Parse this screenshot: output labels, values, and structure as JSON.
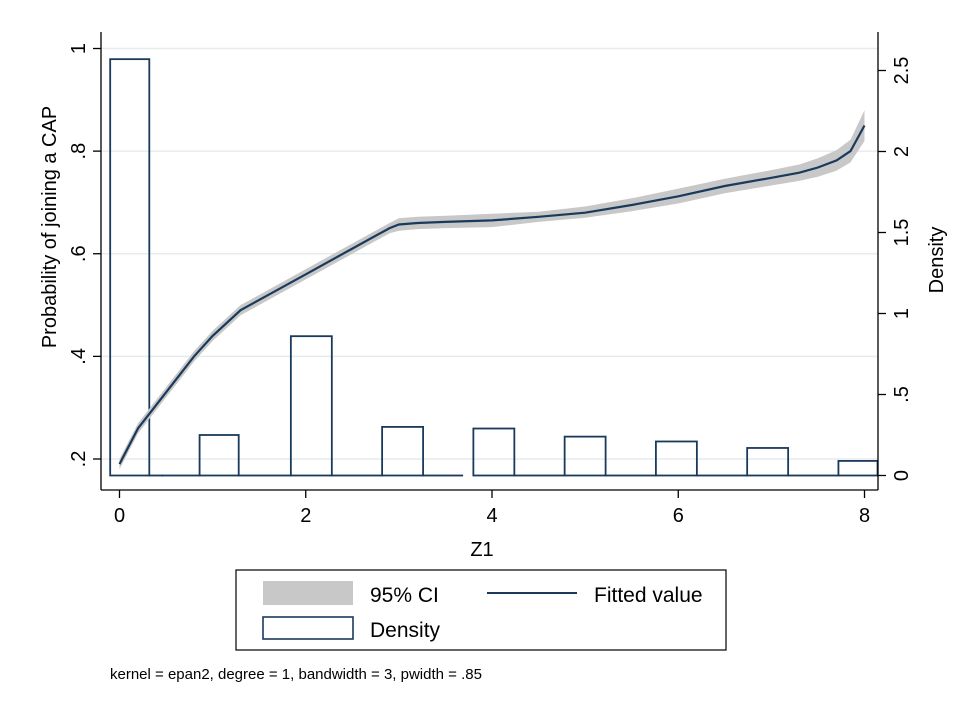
{
  "chart_data": {
    "type": "line",
    "x_axis": {
      "label": "Z1",
      "range": [
        0,
        8
      ],
      "ticks": [
        0,
        2,
        4,
        6,
        8
      ]
    },
    "y_axis_left": {
      "label": "Probability of joining a CAP",
      "range": [
        0.18,
        1.0
      ],
      "ticks": [
        0.2,
        0.4,
        0.6,
        0.8,
        1.0
      ],
      "tick_labels": [
        ".2",
        ".4",
        ".6",
        ".8",
        "1"
      ]
    },
    "y_axis_right": {
      "label": "Density",
      "range": [
        -0.1,
        2.6
      ],
      "ticks": [
        0,
        0.5,
        1,
        1.5,
        2,
        2.5
      ],
      "tick_labels": [
        "0",
        ".5",
        "1",
        "1.5",
        "2",
        "2.5"
      ]
    },
    "grid": true,
    "fitted": {
      "name": "Fitted value",
      "color": "#1a3a5c",
      "x": [
        0,
        0.2,
        0.5,
        0.8,
        1.0,
        1.3,
        1.6,
        2.0,
        2.5,
        2.9,
        3.0,
        3.2,
        3.5,
        4.0,
        4.5,
        5.0,
        5.5,
        6.0,
        6.5,
        7.0,
        7.3,
        7.5,
        7.7,
        7.85,
        8.0
      ],
      "y": [
        0.19,
        0.26,
        0.33,
        0.4,
        0.44,
        0.49,
        0.52,
        0.56,
        0.61,
        0.65,
        0.657,
        0.66,
        0.662,
        0.665,
        0.672,
        0.68,
        0.695,
        0.712,
        0.732,
        0.748,
        0.758,
        0.768,
        0.782,
        0.8,
        0.85
      ]
    },
    "ci": {
      "name": "95% CI",
      "color": "#c8c8c8",
      "x": [
        0,
        0.2,
        0.5,
        0.8,
        1.0,
        1.3,
        1.6,
        2.0,
        2.5,
        2.9,
        3.0,
        3.2,
        3.5,
        4.0,
        4.5,
        5.0,
        5.5,
        6.0,
        6.5,
        7.0,
        7.3,
        7.5,
        7.7,
        7.85,
        8.0
      ],
      "lower": [
        0.18,
        0.25,
        0.32,
        0.39,
        0.43,
        0.48,
        0.51,
        0.55,
        0.6,
        0.64,
        0.645,
        0.648,
        0.65,
        0.652,
        0.662,
        0.67,
        0.683,
        0.698,
        0.718,
        0.733,
        0.742,
        0.75,
        0.762,
        0.778,
        0.82
      ],
      "upper": [
        0.2,
        0.27,
        0.34,
        0.41,
        0.45,
        0.5,
        0.53,
        0.57,
        0.62,
        0.66,
        0.669,
        0.672,
        0.674,
        0.678,
        0.682,
        0.692,
        0.708,
        0.727,
        0.746,
        0.763,
        0.774,
        0.786,
        0.802,
        0.822,
        0.88
      ]
    },
    "density": {
      "name": "Density",
      "color": "#1a3a5c",
      "bins": [
        {
          "x0": -0.1,
          "x1": 0.32,
          "value": 2.57
        },
        {
          "x0": 0.32,
          "x1": 0.46,
          "value": 0
        },
        {
          "x0": 0.46,
          "x1": 0.86,
          "value": 0
        },
        {
          "x0": 0.86,
          "x1": 1.28,
          "value": 0.25
        },
        {
          "x0": 1.28,
          "x1": 1.84,
          "value": 0
        },
        {
          "x0": 1.84,
          "x1": 2.28,
          "value": 0.86
        },
        {
          "x0": 2.28,
          "x1": 2.82,
          "value": 0
        },
        {
          "x0": 2.82,
          "x1": 3.26,
          "value": 0.3
        },
        {
          "x0": 3.26,
          "x1": 3.68,
          "value": 0
        },
        {
          "x0": 3.8,
          "x1": 4.24,
          "value": 0.29
        },
        {
          "x0": 4.24,
          "x1": 4.78,
          "value": 0
        },
        {
          "x0": 4.78,
          "x1": 5.22,
          "value": 0.24
        },
        {
          "x0": 5.22,
          "x1": 5.76,
          "value": 0
        },
        {
          "x0": 5.76,
          "x1": 6.2,
          "value": 0.21
        },
        {
          "x0": 6.2,
          "x1": 6.74,
          "value": 0
        },
        {
          "x0": 6.74,
          "x1": 7.18,
          "value": 0.17
        },
        {
          "x0": 7.18,
          "x1": 7.72,
          "value": 0
        },
        {
          "x0": 7.72,
          "x1": 8.14,
          "value": 0.09
        }
      ]
    },
    "legend": {
      "position": "bottom",
      "entries": [
        {
          "label": "95% CI",
          "kind": "area"
        },
        {
          "label": "Fitted value",
          "kind": "line"
        },
        {
          "label": "Density",
          "kind": "bar"
        }
      ]
    },
    "note": "kernel = epan2, degree = 1, bandwidth = 3, pwidth = .85"
  }
}
